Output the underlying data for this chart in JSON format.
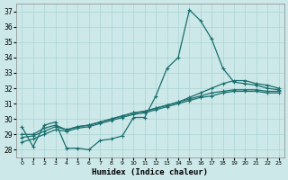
{
  "xlabel": "Humidex (Indice chaleur)",
  "background_color": "#cce8e8",
  "grid_color": "#aad4d4",
  "line_color": "#1a6e6e",
  "xlim": [
    -0.5,
    23.5
  ],
  "ylim": [
    27.5,
    37.5
  ],
  "yticks": [
    28,
    29,
    30,
    31,
    32,
    33,
    34,
    35,
    36,
    37
  ],
  "xticks": [
    0,
    1,
    2,
    3,
    4,
    5,
    6,
    7,
    8,
    9,
    10,
    11,
    12,
    13,
    14,
    15,
    16,
    17,
    18,
    19,
    20,
    21,
    22,
    23
  ],
  "xtick_labels": [
    "0",
    "1",
    "2",
    "3",
    "4",
    "5",
    "6",
    "7",
    "8",
    "9",
    "10",
    "11",
    "12",
    "13",
    "14",
    "15",
    "16",
    "17",
    "18",
    "19",
    "20",
    "21",
    "22",
    "23"
  ],
  "line1": [
    29.5,
    28.2,
    29.6,
    29.8,
    28.1,
    28.1,
    28.0,
    28.6,
    28.7,
    28.9,
    30.1,
    30.1,
    31.5,
    33.3,
    34.0,
    37.1,
    36.4,
    35.2,
    33.3,
    32.4,
    32.3,
    32.2,
    32.0,
    31.9
  ],
  "line2": [
    29.0,
    29.0,
    29.4,
    29.6,
    29.3,
    29.5,
    29.6,
    29.8,
    30.0,
    30.2,
    30.4,
    30.5,
    30.7,
    30.9,
    31.1,
    31.4,
    31.7,
    32.0,
    32.3,
    32.5,
    32.5,
    32.3,
    32.2,
    32.0
  ],
  "line3": [
    28.8,
    28.9,
    29.2,
    29.5,
    29.3,
    29.5,
    29.6,
    29.8,
    30.0,
    30.2,
    30.4,
    30.5,
    30.7,
    30.9,
    31.1,
    31.3,
    31.5,
    31.7,
    31.8,
    31.9,
    31.9,
    31.9,
    31.8,
    31.8
  ],
  "line4": [
    28.5,
    28.7,
    29.0,
    29.3,
    29.2,
    29.4,
    29.5,
    29.7,
    29.9,
    30.1,
    30.3,
    30.4,
    30.6,
    30.8,
    31.0,
    31.2,
    31.4,
    31.5,
    31.7,
    31.8,
    31.8,
    31.8,
    31.7,
    31.7
  ]
}
